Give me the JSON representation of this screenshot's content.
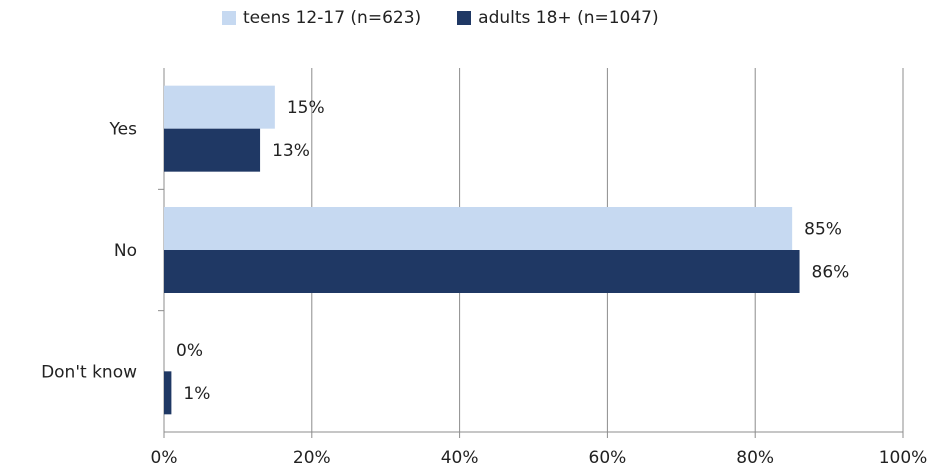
{
  "chart_data": {
    "type": "bar",
    "orientation": "horizontal",
    "categories": [
      "Yes",
      "No",
      "Don't know"
    ],
    "series": [
      {
        "name": "teens 12-17 (n=623)",
        "values": [
          15,
          85,
          0
        ],
        "labels": [
          "15%",
          "85%",
          "0%"
        ],
        "color": "#c6d9f1"
      },
      {
        "name": "adults 18+ (n=1047)",
        "values": [
          13,
          86,
          1
        ],
        "labels": [
          "13%",
          "86%",
          "1%"
        ],
        "color": "#1f3864"
      }
    ],
    "xlim": [
      0,
      100
    ],
    "xticks": [
      "0%",
      "20%",
      "40%",
      "60%",
      "80%",
      "100%"
    ],
    "grid": true,
    "legend_position": "top"
  }
}
